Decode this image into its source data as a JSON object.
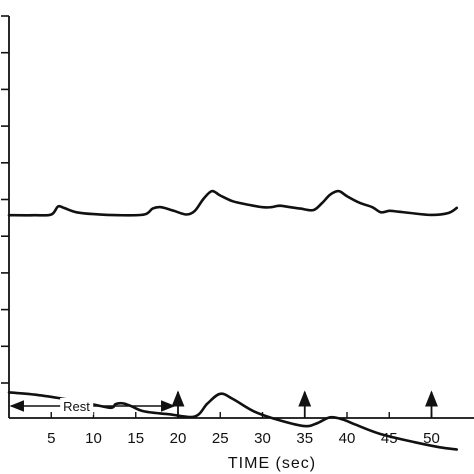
{
  "chart_data": {
    "type": "line",
    "xlabel": "TIME (sec)",
    "xlim": [
      0,
      53
    ],
    "x_ticks": [
      5,
      10,
      15,
      20,
      25,
      30,
      35,
      40,
      45,
      50
    ],
    "grid": false,
    "annotations": [
      {
        "text": "Rest",
        "from": 0,
        "to": 20
      }
    ],
    "arrow_markers_x": [
      20,
      35,
      50
    ],
    "series": [
      {
        "x": [
          0,
          3,
          5,
          5.8,
          6.5,
          8,
          10,
          13,
          16,
          17,
          18,
          19.5,
          21,
          22,
          23,
          24,
          25,
          26.5,
          28.5,
          30,
          31,
          32,
          33,
          34.5,
          36,
          37,
          38,
          39,
          40,
          41.5,
          43,
          44,
          45,
          46,
          47.5,
          50,
          52,
          53
        ],
        "y": [
          0.54,
          0.54,
          0.56,
          0.78,
          0.74,
          0.62,
          0.57,
          0.54,
          0.56,
          0.72,
          0.76,
          0.66,
          0.56,
          0.66,
          0.98,
          1.2,
          1.08,
          0.92,
          0.82,
          0.76,
          0.76,
          0.8,
          0.77,
          0.72,
          0.68,
          0.86,
          1.1,
          1.2,
          1.06,
          0.88,
          0.76,
          0.62,
          0.66,
          0.64,
          0.6,
          0.55,
          0.6,
          0.74
        ]
      },
      {
        "x": [
          0,
          3,
          6,
          9,
          12,
          12.6,
          13.5,
          14.5,
          16,
          19,
          22,
          23.5,
          25,
          26.5,
          29,
          32,
          35,
          36.5,
          38,
          39.5,
          41,
          44,
          48,
          51,
          53
        ],
        "y": [
          -4.3,
          -4.36,
          -4.46,
          -4.58,
          -4.72,
          -4.62,
          -4.6,
          -4.68,
          -4.82,
          -4.9,
          -4.96,
          -4.6,
          -4.34,
          -4.48,
          -4.82,
          -5.06,
          -5.22,
          -5.14,
          -4.98,
          -5.04,
          -5.18,
          -5.44,
          -5.66,
          -5.8,
          -5.86
        ]
      }
    ]
  }
}
